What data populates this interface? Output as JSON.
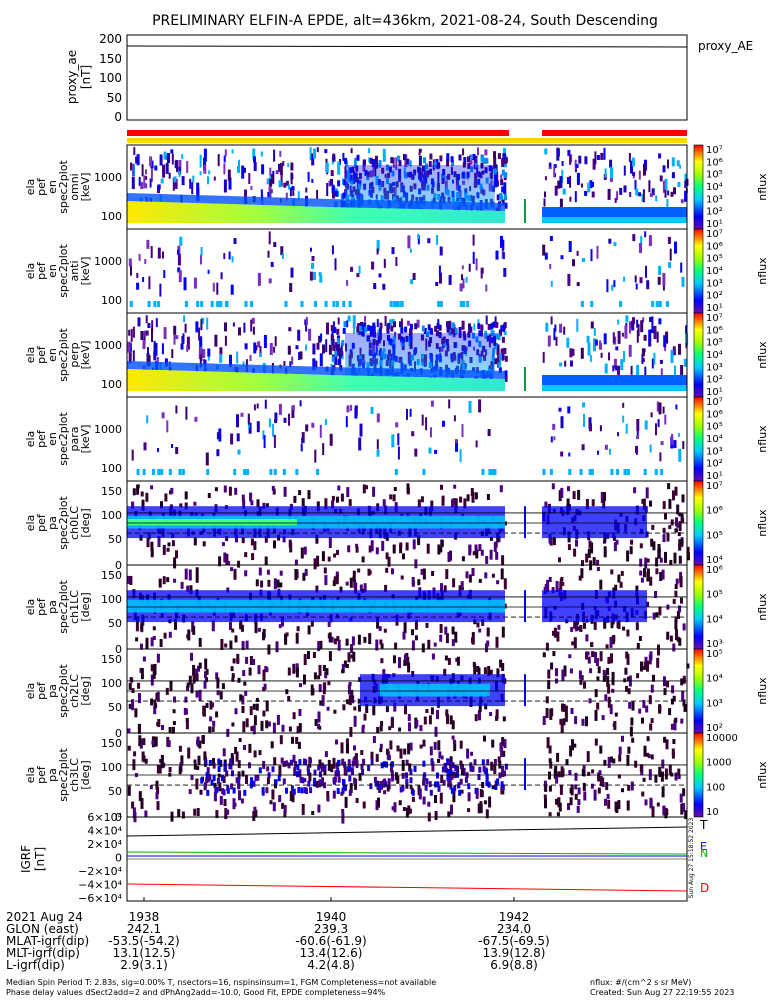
{
  "title": "PRELIMINARY ELFIN-A EPDE, alt=436km, 2021-08-24, South Descending",
  "proxy_panel": {
    "ylabel_line1": "proxy_ae",
    "ylabel_line2": "[nT]",
    "legend": "proxy_AE",
    "ticks": [
      "200",
      "150",
      "100",
      "50",
      "0"
    ]
  },
  "energy_panels": [
    {
      "label": [
        "ela",
        "pef",
        "en",
        "spec2plot",
        "omni",
        "[keV]"
      ],
      "ticks": [
        "1000",
        "100"
      ]
    },
    {
      "label": [
        "ela",
        "pef",
        "en",
        "spec2plot",
        "anti",
        "[keV]"
      ],
      "ticks": [
        "1000",
        "100"
      ]
    },
    {
      "label": [
        "ela",
        "pef",
        "en",
        "spec2plot",
        "perp",
        "[keV]"
      ],
      "ticks": [
        "1000",
        "100"
      ]
    },
    {
      "label": [
        "ela",
        "pef",
        "en",
        "spec2plot",
        "para",
        "[keV]"
      ],
      "ticks": [
        "1000",
        "100"
      ]
    }
  ],
  "pa_panels": [
    {
      "label": [
        "ela",
        "pef",
        "pa",
        "spec2plot",
        "ch0LC",
        "[deg]"
      ],
      "ticks": [
        "150",
        "100",
        "50",
        "0"
      ]
    },
    {
      "label": [
        "ela",
        "pef",
        "pa",
        "spec2plot",
        "ch1LC",
        "[deg]"
      ],
      "ticks": [
        "150",
        "100",
        "50",
        "0"
      ]
    },
    {
      "label": [
        "ela",
        "pef",
        "pa",
        "spec2plot",
        "ch2LC",
        "[deg]"
      ],
      "ticks": [
        "150",
        "100",
        "50",
        "0"
      ]
    },
    {
      "label": [
        "ela",
        "pef",
        "pa",
        "spec2plot",
        "ch3LC",
        "[deg]"
      ],
      "ticks": [
        "150",
        "100",
        "50",
        "0"
      ]
    }
  ],
  "colorbars": [
    {
      "label": "nflux",
      "ticks": [
        "10⁷",
        "10⁶",
        "10⁵",
        "10⁴",
        "10³",
        "10²",
        "10¹"
      ]
    },
    {
      "label": "nflux",
      "ticks": [
        "10⁷",
        "10⁶",
        "10⁵",
        "10⁴",
        "10³",
        "10²",
        "10¹"
      ]
    },
    {
      "label": "nflux",
      "ticks": [
        "10⁷",
        "10⁶",
        "10⁵",
        "10⁴",
        "10³",
        "10²",
        "10¹"
      ]
    },
    {
      "label": "nflux",
      "ticks": [
        "10⁷",
        "10⁶",
        "10⁵",
        "10⁴",
        "10³",
        "10²",
        "10¹"
      ]
    },
    {
      "label": "nflux",
      "ticks": [
        "10⁷",
        "10⁶",
        "10⁵",
        "10⁴"
      ]
    },
    {
      "label": "nflux",
      "ticks": [
        "10⁶",
        "10⁵",
        "10⁴",
        "10³"
      ]
    },
    {
      "label": "nflux",
      "ticks": [
        "10⁵",
        "10⁴",
        "10³",
        "10²"
      ]
    },
    {
      "label": "nflux",
      "ticks": [
        "10000",
        "1000",
        "100",
        "10"
      ]
    }
  ],
  "igrf_panel": {
    "ylabel_line1": "IGRF",
    "ylabel_line2": "[nT]",
    "ticks": [
      "6×10⁴",
      "4×10⁴",
      "2×10⁴",
      "0",
      "−2×10⁴",
      "−4×10⁴",
      "−6×10⁴"
    ],
    "legend": [
      {
        "name": "T",
        "color": "#000000"
      },
      {
        "name": "N",
        "color": "#00b000"
      },
      {
        "name": "E",
        "color": "#0000ff"
      },
      {
        "name": "D",
        "color": "#ff0000"
      }
    ],
    "side_note": "Sun Aug 27 15:18:52 2023"
  },
  "time_axis": {
    "row_labels": [
      "2021 Aug 24",
      "GLON (east)",
      "MLAT-igrf(dip)",
      "MLT-igrf(dip)",
      "L-igrf(dip)"
    ],
    "columns": [
      {
        "time": "1938",
        "values": [
          "242.1",
          "-53.5(-54.2)",
          "13.1(12.5)",
          "2.9(3.1)"
        ]
      },
      {
        "time": "1940",
        "values": [
          "239.3",
          "-60.6(-61.9)",
          "13.4(12.6)",
          "4.2(4.8)"
        ]
      },
      {
        "time": "1942",
        "values": [
          "234.0",
          "-67.5(-69.5)",
          "13.9(12.8)",
          "6.9(8.8)"
        ]
      }
    ]
  },
  "footer": {
    "line1": "Median Spin Period T: 2.83s, sig=0.00% T, nsectors=16, nspinsinsum=1, FGM Completeness=not available",
    "line2": "Phase delay values dSect2add=2 and dPhAng2add=-10.0, Good Fit, EPDE completeness=94%",
    "units": "nflux: #/(cm^2 s sr MeV)",
    "created": "Created: Sun Aug 27 22:19:55 2023"
  },
  "colors": {
    "bar_red": "#ff0000",
    "bar_yellow": "#ffd700",
    "background": "#ffffff"
  },
  "chart_data": {
    "type": "heatmap",
    "title": "PRELIMINARY ELFIN-A EPDE, alt=436km, 2021-08-24, South Descending",
    "x_ticks": [
      "1938",
      "1940",
      "1942"
    ],
    "proxy_ae": {
      "ylim": [
        0,
        200
      ],
      "value_nT": 175
    },
    "igrf_nT": {
      "T": 50000,
      "N": 10000,
      "E": 3000,
      "D": -37000,
      "ylim": [
        -60000,
        60000
      ]
    },
    "energy_ylim_keV": [
      60,
      7000
    ],
    "pa_ylim_deg": [
      0,
      180
    ]
  }
}
